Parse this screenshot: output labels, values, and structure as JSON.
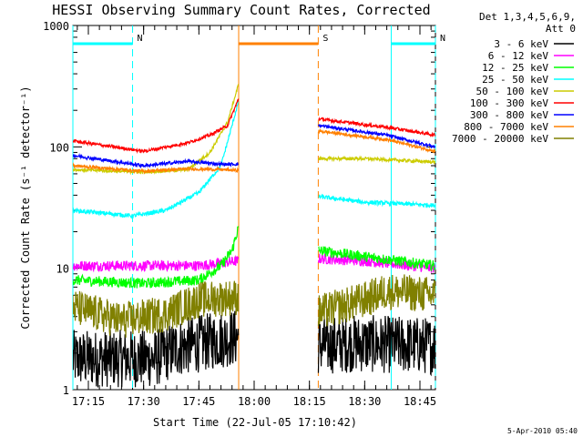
{
  "chart_data": {
    "type": "line",
    "title": "HESSI Observing Summary Count Rates, Corrected",
    "xlabel": "Start Time (22-Jul-05 17:10:42)",
    "ylabel": "Corrected Count Rate (s⁻¹ detector⁻¹)",
    "yscale": "log",
    "ylim": [
      1,
      1000
    ],
    "xlim_minutes": [
      17.18,
      18.82
    ],
    "x_ticks": [
      "17:15",
      "17:30",
      "17:45",
      "18:00",
      "18:15",
      "18:30",
      "18:45"
    ],
    "x_tick_minutes": [
      17.25,
      17.5,
      17.75,
      18.0,
      18.25,
      18.5,
      18.75
    ],
    "y_ticks": [
      "1",
      "10",
      "100",
      "1000"
    ],
    "y_tick_values": [
      1,
      10,
      100,
      1000
    ],
    "legend_header": [
      "Det 1,3,4,5,6,9,",
      "Att 0"
    ],
    "legend_placement": "right",
    "data_gaps": [
      [
        17.93,
        18.29
      ]
    ],
    "series": [
      {
        "name": "3 - 6 keV",
        "color": "#000000",
        "noise": 0.55,
        "points": [
          [
            17.18,
            1.8
          ],
          [
            17.55,
            1.8
          ],
          [
            17.65,
            2.2
          ],
          [
            17.85,
            2.6
          ],
          [
            17.93,
            2.7
          ],
          [
            18.29,
            2.3
          ],
          [
            18.45,
            2.4
          ],
          [
            18.82,
            2.3
          ]
        ]
      },
      {
        "name": "6 - 12 keV",
        "color": "#ff00ff",
        "noise": 0.1,
        "points": [
          [
            17.18,
            10.5
          ],
          [
            17.5,
            10.5
          ],
          [
            17.75,
            10.5
          ],
          [
            17.93,
            11.5
          ],
          [
            18.29,
            12.0
          ],
          [
            18.5,
            11.5
          ],
          [
            18.82,
            10.0
          ]
        ]
      },
      {
        "name": "12 - 25 keV",
        "color": "#00ff00",
        "noise": 0.1,
        "points": [
          [
            17.18,
            8.0
          ],
          [
            17.5,
            7.5
          ],
          [
            17.75,
            8.0
          ],
          [
            17.85,
            10.5
          ],
          [
            17.9,
            14.0
          ],
          [
            17.93,
            22.0
          ],
          [
            18.29,
            14.0
          ],
          [
            18.5,
            12.5
          ],
          [
            18.82,
            10.5
          ]
        ]
      },
      {
        "name": "25 - 50 keV",
        "color": "#00ffff",
        "noise": 0.04,
        "points": [
          [
            17.18,
            30.0
          ],
          [
            17.45,
            27.0
          ],
          [
            17.6,
            30.0
          ],
          [
            17.75,
            42.0
          ],
          [
            17.85,
            70.0
          ],
          [
            17.9,
            150.0
          ],
          [
            17.93,
            240.0
          ],
          [
            18.29,
            39.0
          ],
          [
            18.5,
            35.0
          ],
          [
            18.82,
            33.0
          ]
        ]
      },
      {
        "name": "50 - 100 keV",
        "color": "#cccc00",
        "noise": 0.03,
        "points": [
          [
            17.18,
            65.0
          ],
          [
            17.5,
            62.0
          ],
          [
            17.7,
            65.0
          ],
          [
            17.8,
            90.0
          ],
          [
            17.88,
            160.0
          ],
          [
            17.93,
            330.0
          ],
          [
            18.29,
            80.0
          ],
          [
            18.5,
            80.0
          ],
          [
            18.82,
            75.0
          ]
        ]
      },
      {
        "name": "100 - 300 keV",
        "color": "#ff0000",
        "noise": 0.03,
        "points": [
          [
            17.18,
            112.0
          ],
          [
            17.5,
            92.0
          ],
          [
            17.7,
            108.0
          ],
          [
            17.8,
            125.0
          ],
          [
            17.88,
            150.0
          ],
          [
            17.93,
            250.0
          ],
          [
            18.29,
            170.0
          ],
          [
            18.6,
            145.0
          ],
          [
            18.82,
            125.0
          ]
        ]
      },
      {
        "name": "300 - 800 keV",
        "color": "#0000ff",
        "noise": 0.03,
        "points": [
          [
            17.18,
            85.0
          ],
          [
            17.5,
            70.0
          ],
          [
            17.7,
            76.0
          ],
          [
            17.85,
            72.0
          ],
          [
            17.93,
            72.0
          ],
          [
            18.29,
            150.0
          ],
          [
            18.6,
            125.0
          ],
          [
            18.82,
            100.0
          ]
        ]
      },
      {
        "name": "800 - 7000 keV",
        "color": "#ff8000",
        "noise": 0.03,
        "points": [
          [
            17.18,
            70.0
          ],
          [
            17.5,
            63.0
          ],
          [
            17.7,
            66.0
          ],
          [
            17.85,
            65.0
          ],
          [
            17.93,
            64.0
          ],
          [
            18.29,
            135.0
          ],
          [
            18.6,
            115.0
          ],
          [
            18.82,
            92.0
          ]
        ]
      },
      {
        "name": "7000 - 20000 keV",
        "color": "#808000",
        "noise": 0.35,
        "points": [
          [
            17.18,
            4.8
          ],
          [
            17.4,
            3.7
          ],
          [
            17.6,
            4.2
          ],
          [
            17.75,
            5.5
          ],
          [
            17.93,
            5.8
          ],
          [
            18.29,
            4.3
          ],
          [
            18.5,
            5.5
          ],
          [
            18.6,
            6.5
          ],
          [
            18.82,
            6.0
          ]
        ]
      }
    ],
    "annotations": [
      {
        "label": "N",
        "type": "night",
        "color": "#00ffff",
        "start": 17.18,
        "end": 17.45
      },
      {
        "label": "N",
        "type": "night",
        "color": "#00ffff",
        "start": 18.62,
        "end": 18.82
      },
      {
        "label": "S",
        "type": "saa",
        "color": "#ff8000",
        "start": 17.93,
        "end": 18.29
      }
    ],
    "footer_stamp": "5-Apr-2010 05:40"
  }
}
